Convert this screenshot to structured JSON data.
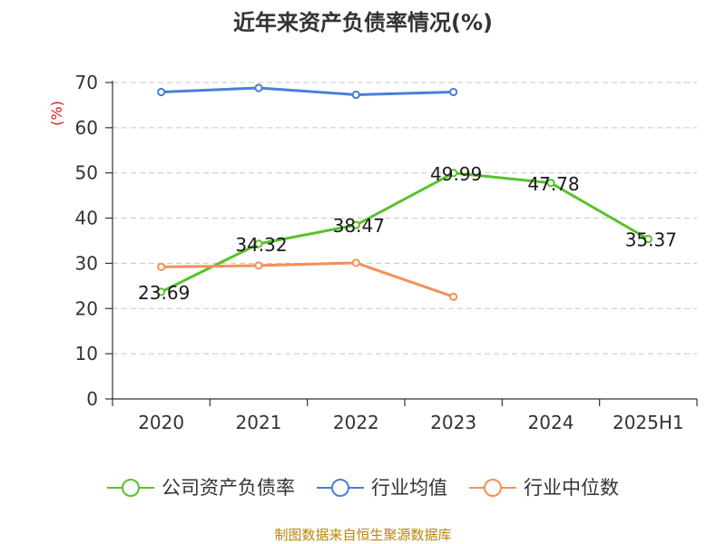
{
  "chart_data": {
    "type": "line",
    "title": "近年来资产负债率情况(%)",
    "ylabel": "(%)",
    "xlabel": "",
    "categories": [
      "2020",
      "2021",
      "2022",
      "2023",
      "2024",
      "2025H1"
    ],
    "ylim": [
      0,
      70
    ],
    "yticks": [
      0,
      10,
      20,
      30,
      40,
      50,
      60,
      70
    ],
    "grid": true,
    "legend_position": "bottom",
    "series": [
      {
        "name": "公司资产负债率",
        "color": "#58c22b",
        "values": [
          23.69,
          34.32,
          38.47,
          49.99,
          47.78,
          35.37
        ],
        "labels": [
          "23.69",
          "34.32",
          "38.47",
          "49.99",
          "47.78",
          "35.37"
        ],
        "show_labels": true
      },
      {
        "name": "行业均值",
        "color": "#4a7fd6",
        "values": [
          67.9,
          68.8,
          67.3,
          67.9,
          null,
          null
        ],
        "show_labels": false
      },
      {
        "name": "行业中位数",
        "color": "#f4905a",
        "values": [
          29.2,
          29.5,
          30.1,
          22.6,
          null,
          null
        ],
        "show_labels": false
      }
    ],
    "source": "制图数据来自恒生聚源数据库"
  }
}
